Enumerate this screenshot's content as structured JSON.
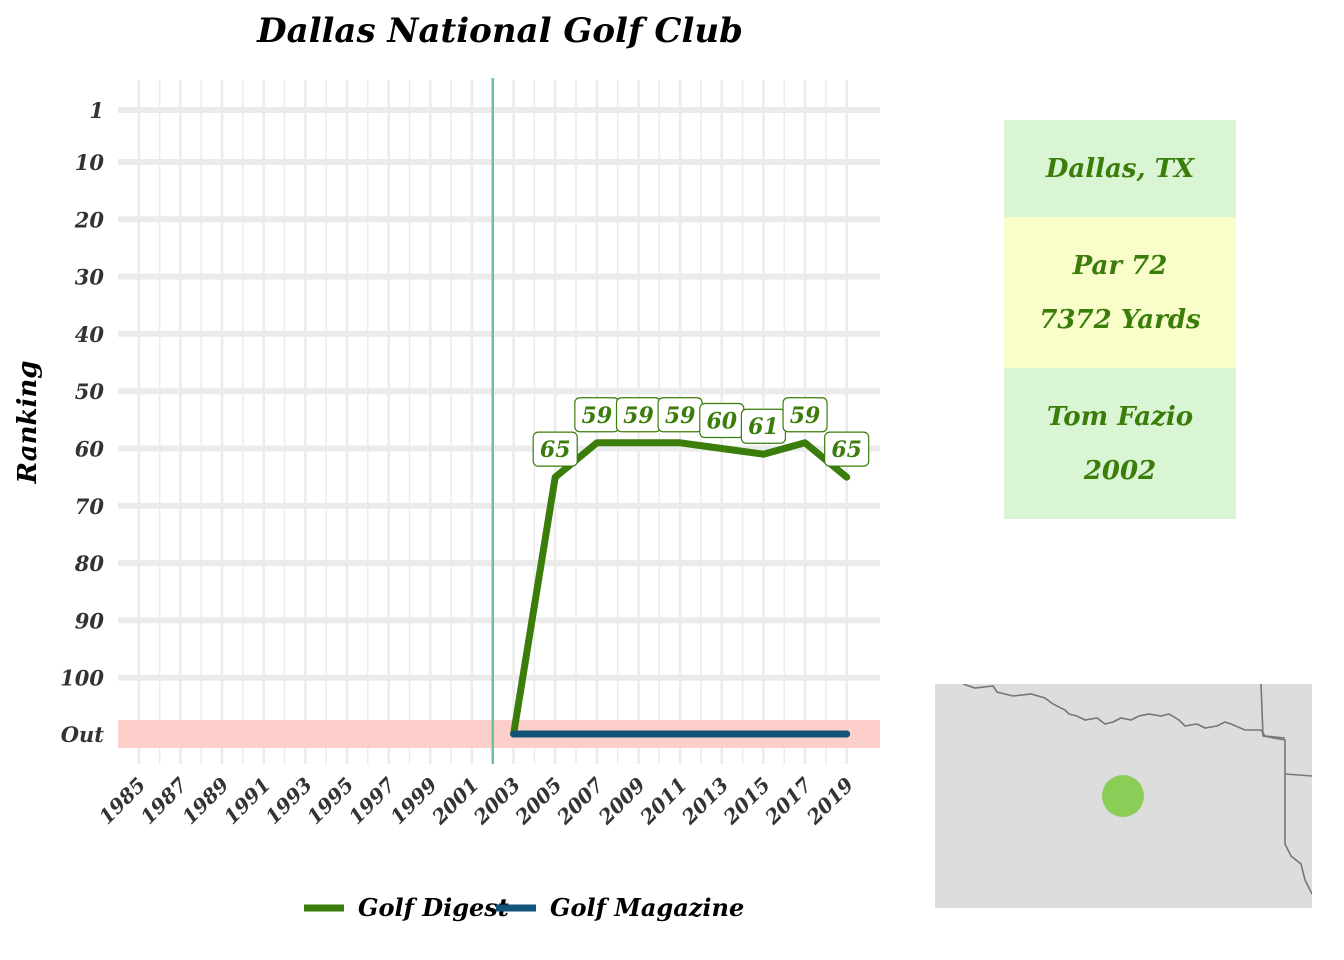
{
  "chart_data": {
    "type": "line",
    "title": "Dallas National Golf Club",
    "xlabel": "",
    "ylabel": "Ranking",
    "x_ticks": [
      1985,
      1987,
      1989,
      1991,
      1993,
      1995,
      1997,
      1999,
      2001,
      2003,
      2005,
      2007,
      2009,
      2011,
      2013,
      2015,
      2017,
      2019
    ],
    "xlim": [
      1984,
      2020.6
    ],
    "y_ticks": [
      "1",
      "10",
      "20",
      "30",
      "40",
      "50",
      "60",
      "70",
      "80",
      "90",
      "100",
      "Out"
    ],
    "y_reversed": true,
    "out_band_label": "Out",
    "opened_year": 2002,
    "series": [
      {
        "name": "Golf Digest",
        "color": "#3a7d0a",
        "points": [
          {
            "x": 2003,
            "y": "Out"
          },
          {
            "x": 2005,
            "y": 65
          },
          {
            "x": 2007,
            "y": 59
          },
          {
            "x": 2009,
            "y": 59
          },
          {
            "x": 2011,
            "y": 59
          },
          {
            "x": 2013,
            "y": 60
          },
          {
            "x": 2015,
            "y": 61
          },
          {
            "x": 2017,
            "y": 59
          },
          {
            "x": 2019,
            "y": 65
          }
        ],
        "data_labels": [
          {
            "x": 2005,
            "y": 65,
            "text": "65"
          },
          {
            "x": 2007,
            "y": 59,
            "text": "59"
          },
          {
            "x": 2009,
            "y": 59,
            "text": "59"
          },
          {
            "x": 2011,
            "y": 59,
            "text": "59"
          },
          {
            "x": 2013,
            "y": 60,
            "text": "60"
          },
          {
            "x": 2015,
            "y": 61,
            "text": "61"
          },
          {
            "x": 2017,
            "y": 59,
            "text": "59"
          },
          {
            "x": 2019,
            "y": 65,
            "text": "65"
          }
        ]
      },
      {
        "name": "Golf Magazine",
        "color": "#12537a",
        "points": [
          {
            "x": 2003,
            "y": "Out"
          },
          {
            "x": 2019,
            "y": "Out"
          }
        ]
      }
    ],
    "legend_position": "bottom",
    "grid": true,
    "colors": {
      "out_band": "#fdcfcb",
      "opened_line": "#6cc496",
      "gridline": "#ebebeb"
    }
  },
  "info": {
    "location": "Dallas, TX",
    "par": "Par 72",
    "yards": "7372 Yards",
    "architect": "Tom Fazio",
    "year": "2002",
    "colors": {
      "text": "#3a7d0a",
      "box_green": "#d9f5d4",
      "box_yellow": "#f8fdc9"
    }
  },
  "map": {
    "marker_color": "#7ccb3f",
    "background": "#dddddd",
    "border_color": "#777777"
  }
}
